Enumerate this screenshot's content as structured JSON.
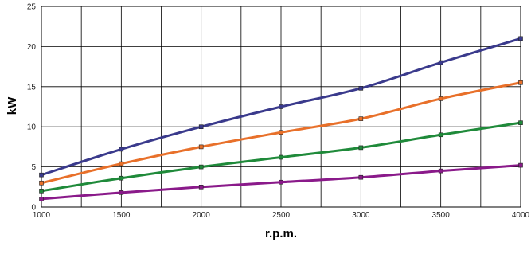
{
  "chart_data": {
    "type": "line",
    "title": "",
    "xlabel": "r.p.m.",
    "ylabel": "kW",
    "xlim": [
      1000,
      4000
    ],
    "ylim": [
      0,
      25
    ],
    "x_ticks": [
      1000,
      1500,
      2000,
      2500,
      3000,
      3500,
      4000
    ],
    "y_ticks": [
      0,
      5,
      10,
      15,
      20,
      25
    ],
    "grid": true,
    "legend": false,
    "series": [
      {
        "color": "#3a3a8c",
        "x": [
          1000,
          1500,
          2000,
          2500,
          3000,
          3500,
          4000
        ],
        "y": [
          4.0,
          7.2,
          10.0,
          12.5,
          14.8,
          18.0,
          21.0
        ]
      },
      {
        "color": "#e8702a",
        "x": [
          1000,
          1500,
          2000,
          2500,
          3000,
          3500,
          4000
        ],
        "y": [
          3.0,
          5.4,
          7.5,
          9.3,
          11.0,
          13.5,
          15.5
        ]
      },
      {
        "color": "#1f8a3a",
        "x": [
          1000,
          1500,
          2000,
          2500,
          3000,
          3500,
          4000
        ],
        "y": [
          2.0,
          3.6,
          5.0,
          6.2,
          7.4,
          9.0,
          10.5
        ]
      },
      {
        "color": "#8a1a8a",
        "x": [
          1000,
          1500,
          2000,
          2500,
          3000,
          3500,
          4000
        ],
        "y": [
          1.0,
          1.8,
          2.5,
          3.1,
          3.7,
          4.5,
          5.2
        ]
      }
    ]
  }
}
